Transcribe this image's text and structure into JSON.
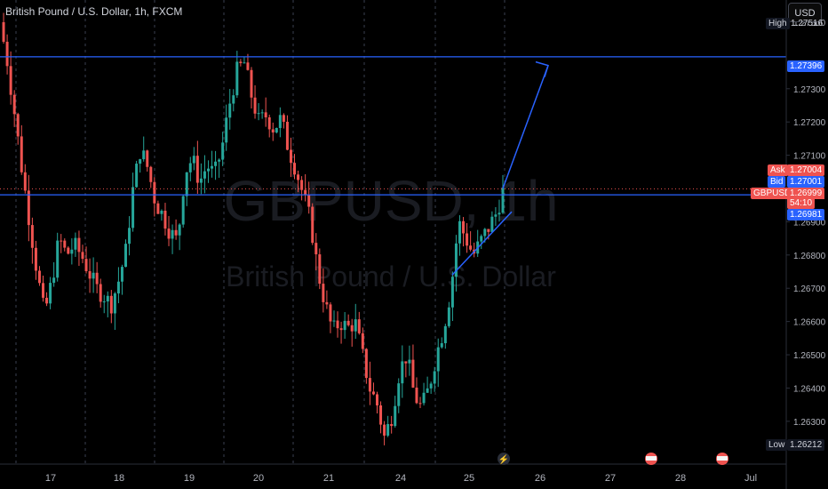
{
  "header": {
    "symbol_title": "British Pound / U.S. Dollar, 1h, FXCM",
    "currency_button": "USD"
  },
  "watermark": {
    "ticker": "GBPUSD, 1h",
    "name": "British Pound / U.S. Dollar"
  },
  "tags": {
    "high_label": "High",
    "high_value": "1.27516",
    "level_value": "1.27396",
    "ask_label": "Ask",
    "ask_value": "1.27004",
    "bid_label": "Bid",
    "bid_value": "1.27001",
    "symbol_label": "GBPUSD",
    "last_value": "1.26999",
    "countdown": "54:10",
    "line2_value": "1.26981",
    "low_label": "Low",
    "low_value": "1.26212"
  },
  "colors": {
    "up": "#26a69a",
    "down": "#ef5350",
    "line": "#2962ff",
    "grid": "#2a2e39",
    "axis_text": "#b2b5be"
  },
  "chart_data": {
    "type": "candlestick",
    "title": "British Pound / U.S. Dollar, 1h, FXCM",
    "y_ticks": [
      1.275,
      1.273,
      1.272,
      1.271,
      1.269,
      1.268,
      1.267,
      1.266,
      1.265,
      1.264,
      1.263
    ],
    "y_range": [
      1.2619,
      1.2754
    ],
    "x_ticks": [
      "17",
      "18",
      "19",
      "20",
      "21",
      "24",
      "25",
      "26",
      "27",
      "28",
      "Jul"
    ],
    "horizontal_lines": [
      1.27396,
      1.26981
    ],
    "trendline": {
      "from": [
        "24",
        1.2674
      ],
      "to": [
        "25",
        1.2693
      ]
    },
    "projection_arrow": {
      "from": [
        "25",
        1.27
      ],
      "to": [
        "26",
        1.2737
      ]
    },
    "close_path": [
      1.275,
      1.2738,
      1.2722,
      1.2705,
      1.269,
      1.2675,
      1.2662,
      1.2672,
      1.2685,
      1.268,
      1.2683,
      1.268,
      1.2675,
      1.267,
      1.2668,
      1.2665,
      1.2672,
      1.2681,
      1.27,
      1.2712,
      1.2706,
      1.2696,
      1.2692,
      1.2687,
      1.2684,
      1.2705,
      1.2709,
      1.2702,
      1.2707,
      1.2704,
      1.2712,
      1.2725,
      1.2735,
      1.2738,
      1.2728,
      1.272,
      1.2722,
      1.2718,
      1.2721,
      1.2712,
      1.2706,
      1.2698,
      1.269,
      1.2675,
      1.2665,
      1.2657,
      1.266,
      1.2658,
      1.266,
      1.265,
      1.264,
      1.2635,
      1.2625,
      1.2632,
      1.2645,
      1.265,
      1.2638,
      1.2634,
      1.264,
      1.265,
      1.2658,
      1.267,
      1.269,
      1.2685,
      1.268,
      1.2684,
      1.2688,
      1.2692,
      1.2699
    ]
  }
}
